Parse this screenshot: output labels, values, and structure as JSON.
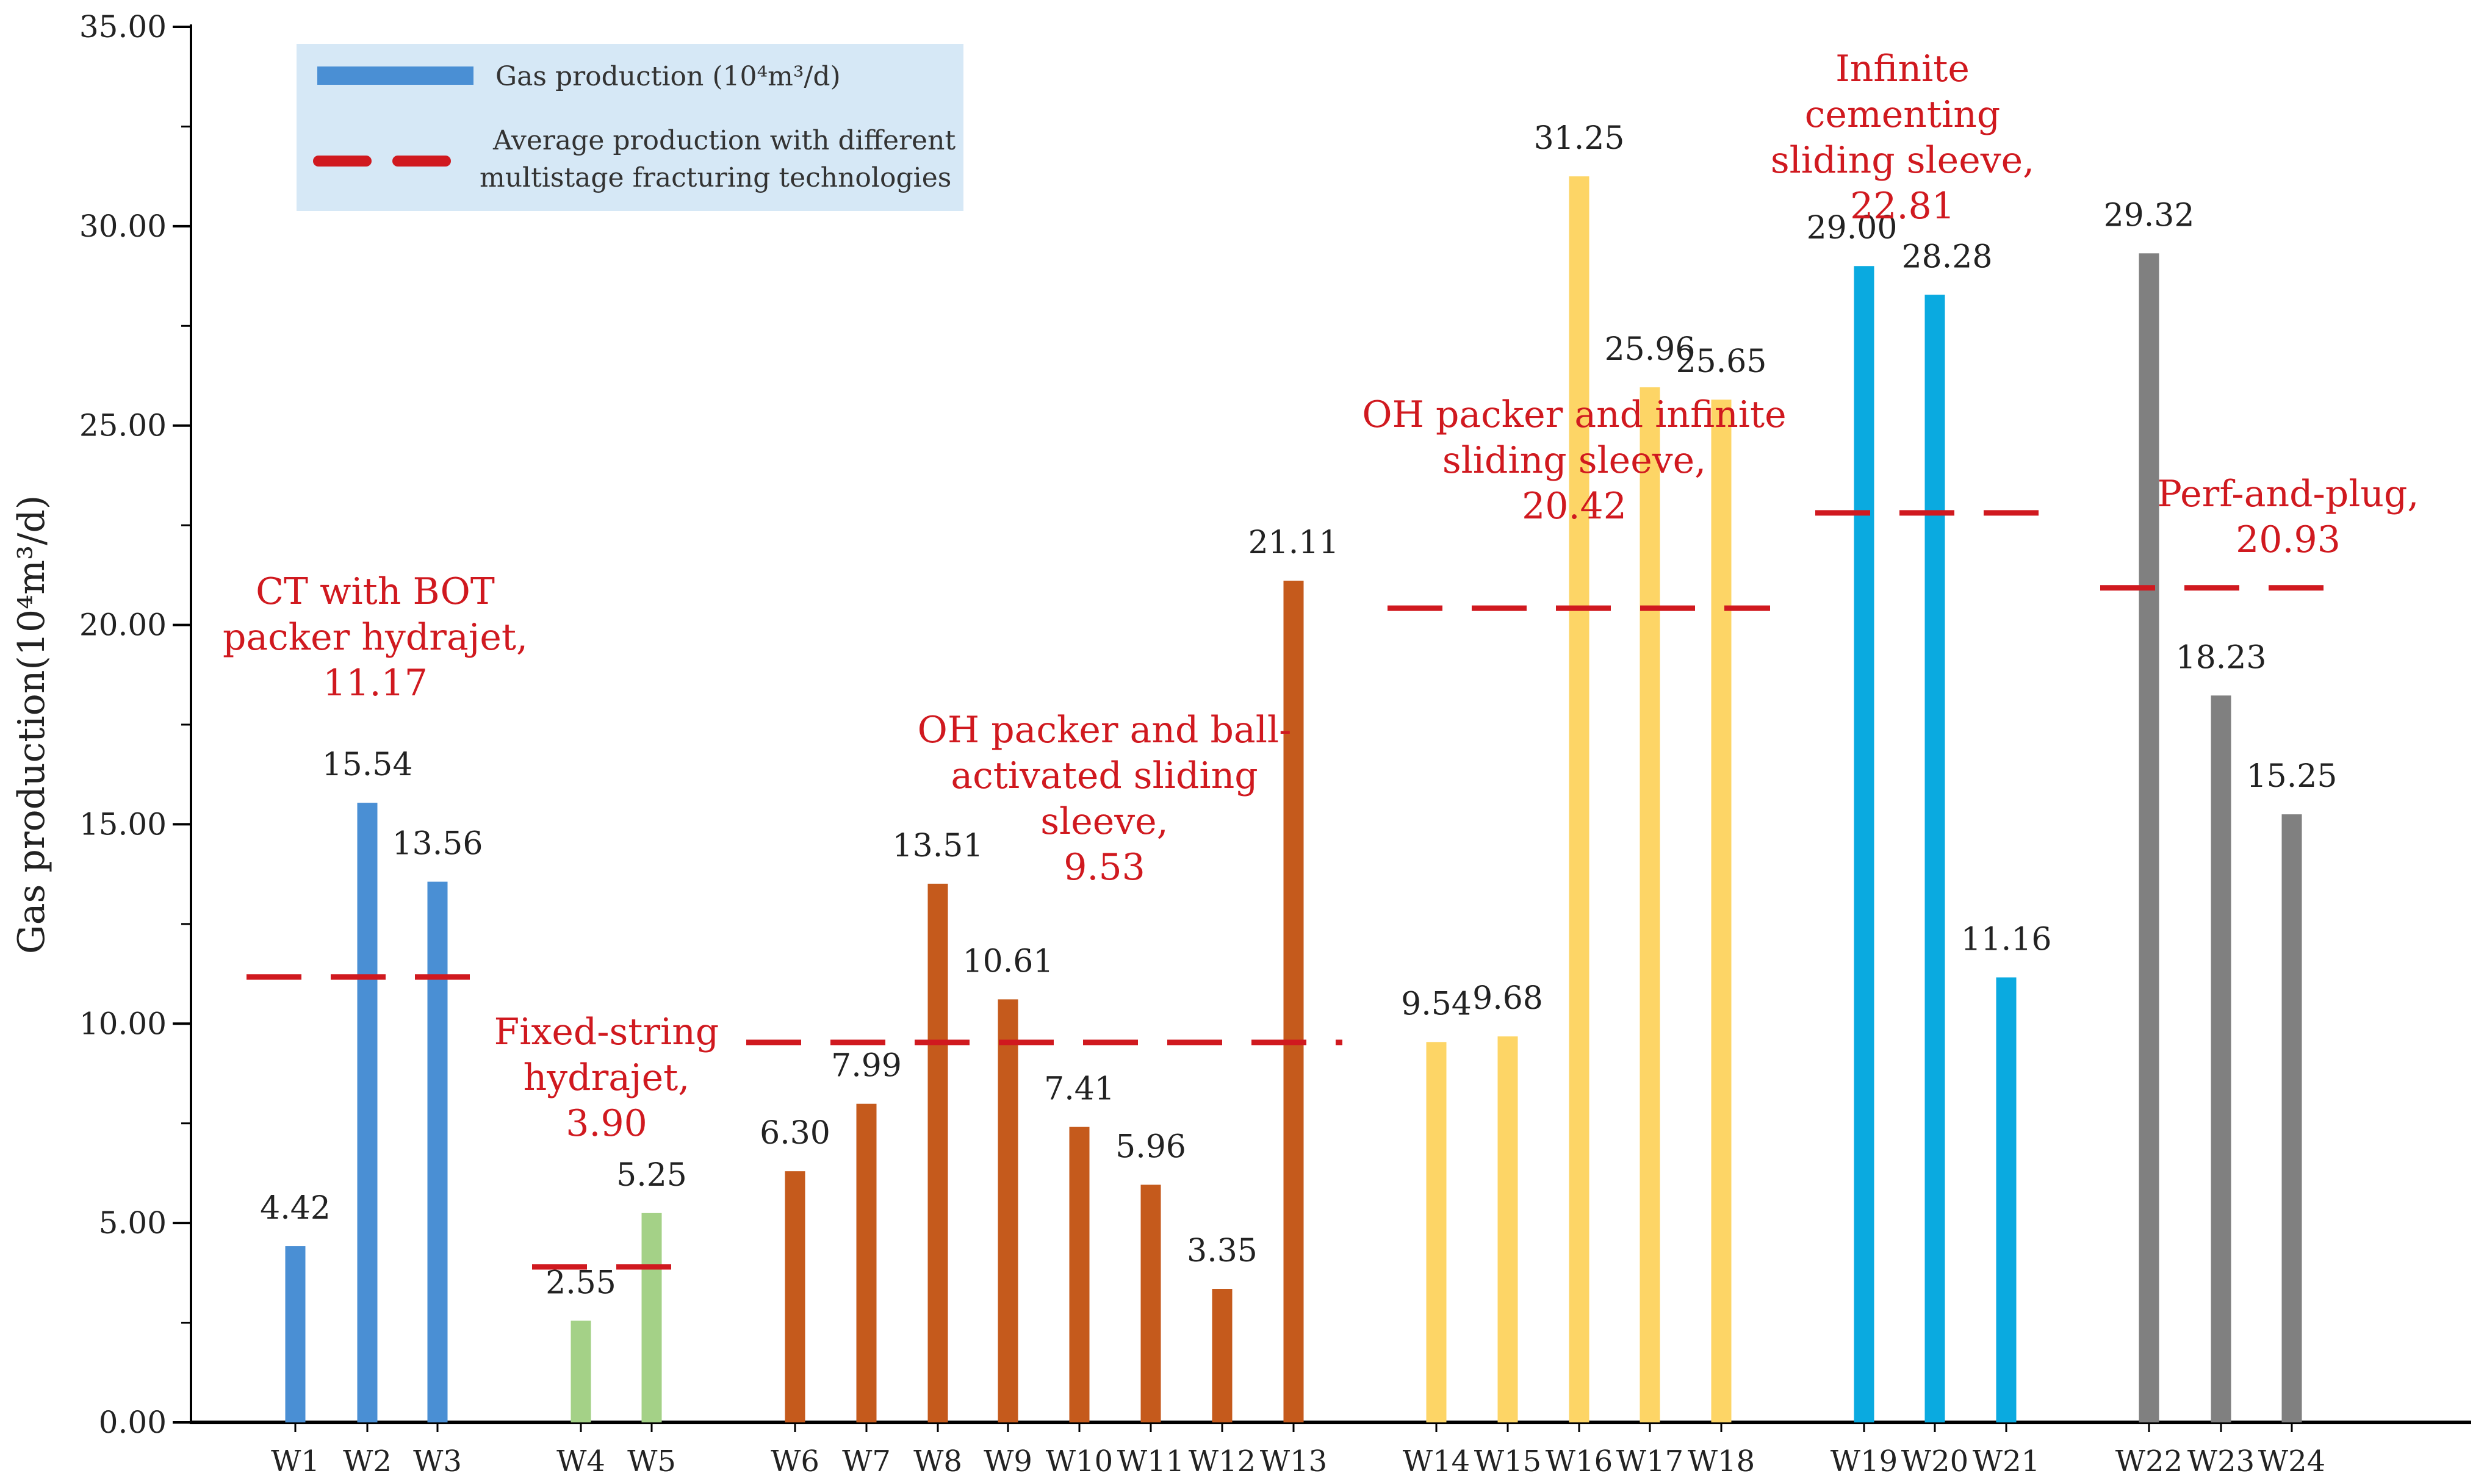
{
  "chart_data": {
    "type": "bar",
    "ylabel": "Gas production(10⁴m³/d)",
    "ylim": [
      0,
      35
    ],
    "yticks": [
      "0.00",
      "5.00",
      "10.00",
      "15.00",
      "20.00",
      "25.00",
      "30.00",
      "35.00"
    ],
    "ytick_values": [
      0,
      5,
      10,
      15,
      20,
      25,
      30,
      35
    ],
    "grid": false,
    "legend": {
      "placement": "top-left",
      "items": [
        {
          "label": "Gas production (10⁴m³/d)",
          "kind": "bar",
          "color": "#4a8fd4"
        },
        {
          "label_line1": "Average production with different",
          "label_line2": "multistage fracturing technologies",
          "kind": "dashed-line",
          "color": "#d0191f"
        }
      ]
    },
    "groups": [
      {
        "name_lines": [
          "CT with BOT",
          "packer hydrajet,",
          "11.17"
        ],
        "average": 11.17,
        "color": "#4a8fd4",
        "wells": [
          {
            "name": "W1",
            "value": 4.42,
            "label": "4.42"
          },
          {
            "name": "W2",
            "value": 15.54,
            "label": "15.54"
          },
          {
            "name": "W3",
            "value": 13.56,
            "label": "13.56"
          }
        ]
      },
      {
        "name_lines": [
          "Fixed-string",
          "hydrajet,",
          "3.90"
        ],
        "average": 3.9,
        "color": "#a4d187",
        "wells": [
          {
            "name": "W4",
            "value": 2.55,
            "label": "2.55"
          },
          {
            "name": "W5",
            "value": 5.25,
            "label": "5.25"
          }
        ]
      },
      {
        "name_lines": [
          "OH packer and ball-",
          "activated sliding",
          "sleeve,",
          "9.53"
        ],
        "average": 9.53,
        "color": "#c55a1c",
        "wells": [
          {
            "name": "W6",
            "value": 6.3,
            "label": "6.30"
          },
          {
            "name": "W7",
            "value": 7.99,
            "label": "7.99"
          },
          {
            "name": "W8",
            "value": 13.51,
            "label": "13.51"
          },
          {
            "name": "W9",
            "value": 10.61,
            "label": "10.61"
          },
          {
            "name": "W10",
            "value": 7.41,
            "label": "7.41"
          },
          {
            "name": "W11",
            "value": 5.96,
            "label": "5.96"
          },
          {
            "name": "W12",
            "value": 3.35,
            "label": "3.35"
          },
          {
            "name": "W13",
            "value": 21.11,
            "label": "21.11"
          }
        ]
      },
      {
        "name_lines": [
          "OH packer and infinite",
          "sliding sleeve,",
          "20.42"
        ],
        "average": 20.42,
        "color": "#fdd566",
        "wells": [
          {
            "name": "W14",
            "value": 9.54,
            "label": "9.54"
          },
          {
            "name": "W15",
            "value": 9.68,
            "label": "9.68"
          },
          {
            "name": "W16",
            "value": 31.25,
            "label": "31.25"
          },
          {
            "name": "W17",
            "value": 25.96,
            "label": "25.96"
          },
          {
            "name": "W18",
            "value": 25.65,
            "label": "25.65"
          }
        ]
      },
      {
        "name_lines": [
          "Infinite",
          "cementing",
          "sliding sleeve,",
          "22.81"
        ],
        "average": 22.81,
        "color": "#0aaae0",
        "wells": [
          {
            "name": "W19",
            "value": 29.0,
            "label": "29.00"
          },
          {
            "name": "W20",
            "value": 28.28,
            "label": "28.28"
          },
          {
            "name": "W21",
            "value": 11.16,
            "label": "11.16"
          }
        ]
      },
      {
        "name_lines": [
          "Perf-and-plug,",
          "20.93"
        ],
        "average": 20.93,
        "color": "#808080",
        "wells": [
          {
            "name": "W22",
            "value": 29.32,
            "label": "29.32"
          },
          {
            "name": "W23",
            "value": 18.23,
            "label": "18.23"
          },
          {
            "name": "W24",
            "value": 15.25,
            "label": "15.25"
          }
        ]
      }
    ]
  }
}
